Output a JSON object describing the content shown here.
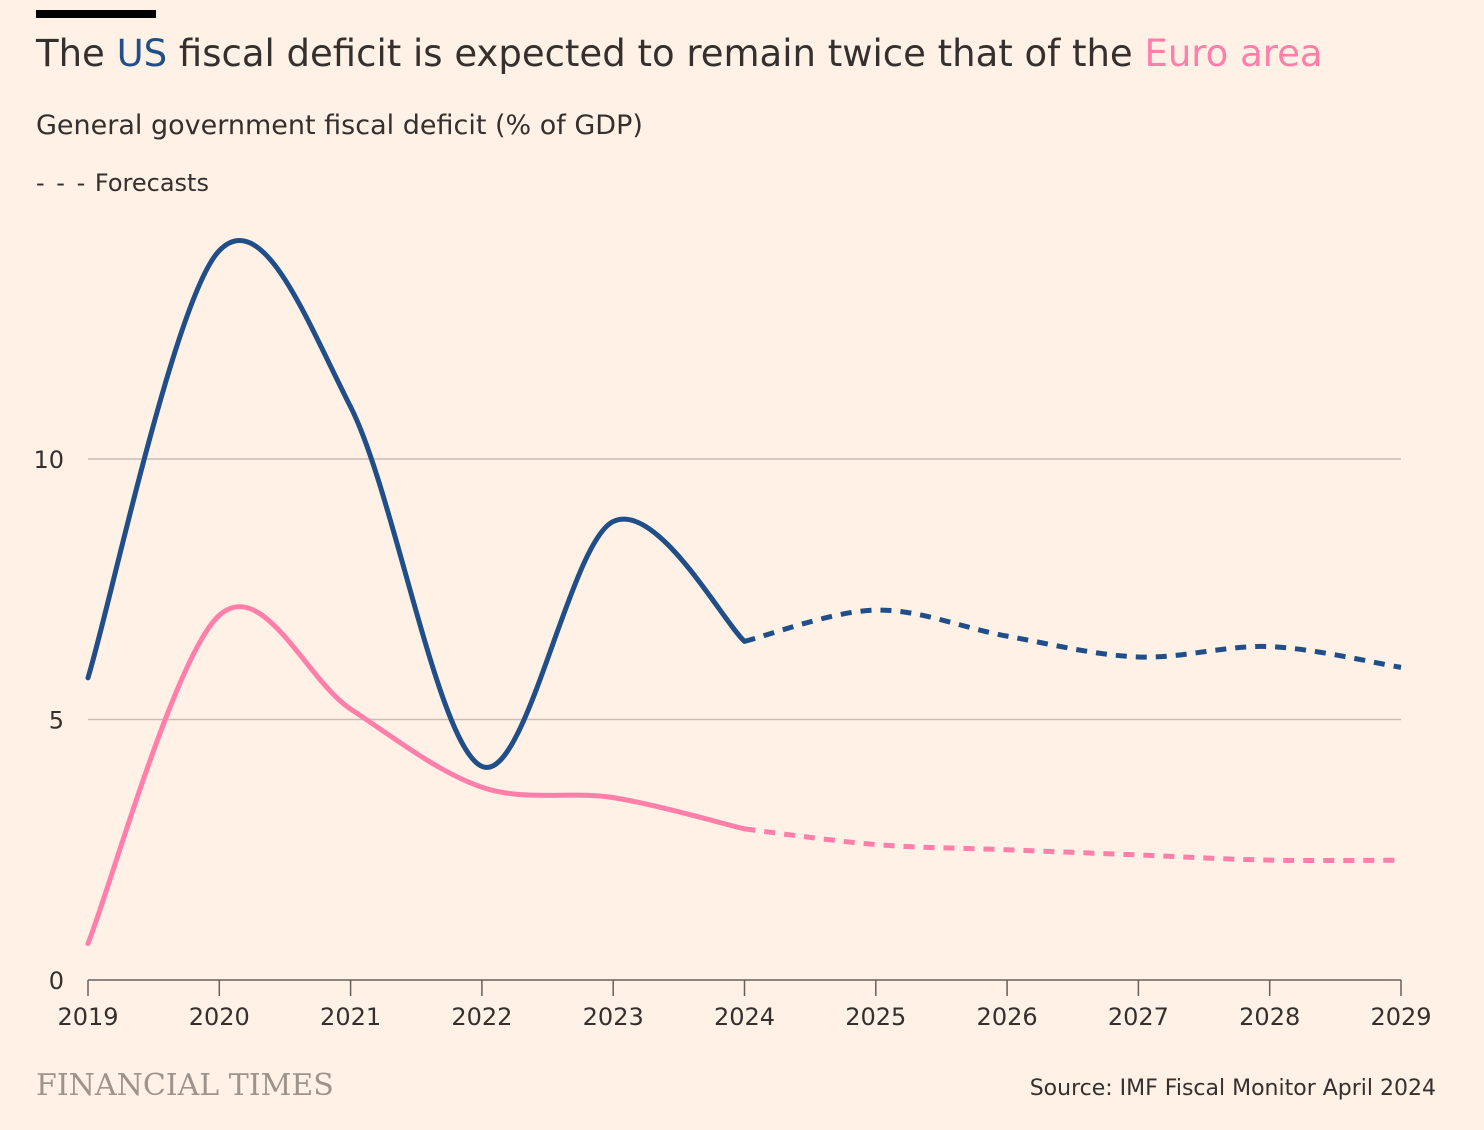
{
  "header": {
    "title_pre": "The ",
    "title_us": "US",
    "title_mid": " fiscal deficit is expected to remain twice that of the ",
    "title_eu": "Euro area",
    "subtitle": "General government fiscal deficit (% of GDP)",
    "legend_dashes": "- - -",
    "legend_label": "Forecasts"
  },
  "footer": {
    "brand": "FINANCIAL TIMES",
    "source": "Source: IMF Fiscal Monitor April 2024"
  },
  "colors": {
    "background": "#FFF1E5",
    "us": "#1F4E89",
    "euro": "#FF7FAA",
    "grid": "#C9BDB3",
    "axis": "#66605C",
    "text": "#33302E"
  },
  "chart_data": {
    "type": "line",
    "x": [
      2019,
      2020,
      2021,
      2022,
      2023,
      2024,
      2025,
      2026,
      2027,
      2028,
      2029
    ],
    "x_tick_labels": [
      "2019",
      "2020",
      "2021",
      "2022",
      "2023",
      "2024",
      "2025",
      "2026",
      "2027",
      "2028",
      "2029"
    ],
    "y_ticks": [
      0,
      5,
      10
    ],
    "y_tick_labels": [
      "0",
      "5",
      "10"
    ],
    "ylim": [
      0,
      14
    ],
    "xlim": [
      2019,
      2029
    ],
    "grid": true,
    "forecast_start": 2024,
    "series": [
      {
        "name": "US",
        "color_key": "us",
        "values": [
          5.8,
          14.0,
          11.0,
          4.1,
          8.8,
          6.5,
          7.1,
          6.6,
          6.2,
          6.4,
          6.0
        ]
      },
      {
        "name": "Euro area",
        "color_key": "euro",
        "values": [
          0.7,
          7.0,
          5.2,
          3.7,
          3.5,
          2.9,
          2.6,
          2.5,
          2.4,
          2.3,
          2.3
        ]
      }
    ]
  }
}
